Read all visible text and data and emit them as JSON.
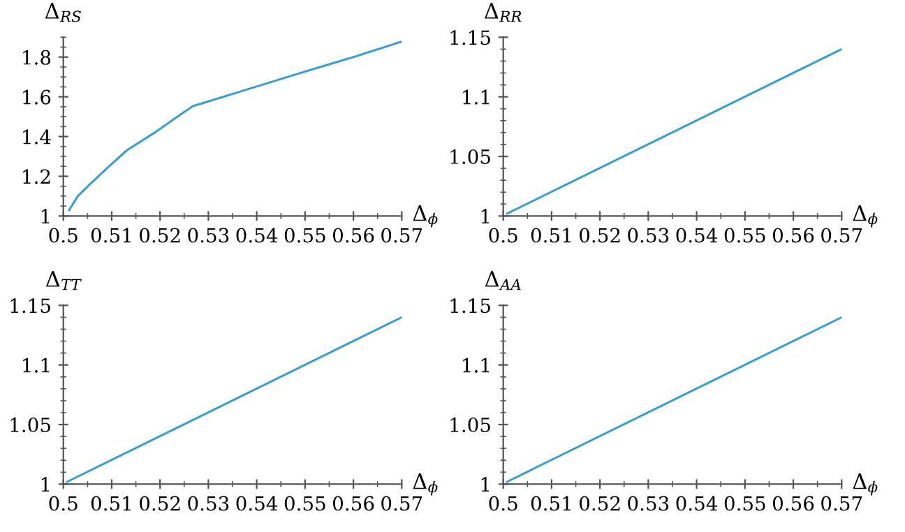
{
  "chart_data": [
    {
      "type": "line",
      "ylabel": "Δ$_{RS}$",
      "xlabel": "Δ$_{ϕ}$",
      "xlim": [
        0.5,
        0.57
      ],
      "xticks": [
        0.5,
        0.51,
        0.52,
        0.53,
        0.54,
        0.55,
        0.56,
        0.57
      ],
      "ylim": [
        1,
        1.9
      ],
      "yticks": [
        1,
        1.2,
        1.4,
        1.6,
        1.8
      ],
      "grid": false,
      "legend": false,
      "series": [
        {
          "color": "#3a9fcf",
          "x": [
            0.5012,
            0.503,
            0.5055,
            0.509,
            0.5131,
            0.5189,
            0.523,
            0.5268,
            0.53,
            0.54,
            0.55,
            0.56,
            0.57
          ],
          "values": [
            1.03,
            1.1,
            1.16,
            1.24,
            1.33,
            1.42,
            1.49,
            1.553,
            1.577,
            1.652,
            1.727,
            1.8,
            1.878
          ]
        }
      ]
    },
    {
      "type": "line",
      "ylabel": "Δ$_{RR}$",
      "xlabel": "Δ$_{ϕ}$",
      "xlim": [
        0.5,
        0.57
      ],
      "xticks": [
        0.5,
        0.51,
        0.52,
        0.53,
        0.54,
        0.55,
        0.56,
        0.57
      ],
      "ylim": [
        1,
        1.15
      ],
      "yticks": [
        1,
        1.05,
        1.1,
        1.15
      ],
      "grid": false,
      "legend": false,
      "series": [
        {
          "color": "#3a9fcf",
          "x": [
            0.5008,
            0.57
          ],
          "values": [
            1.002,
            1.14
          ]
        }
      ]
    },
    {
      "type": "line",
      "ylabel": "Δ$_{TT}$",
      "xlabel": "Δ$_{ϕ}$",
      "xlim": [
        0.5,
        0.57
      ],
      "xticks": [
        0.5,
        0.51,
        0.52,
        0.53,
        0.54,
        0.55,
        0.56,
        0.57
      ],
      "ylim": [
        1,
        1.15
      ],
      "yticks": [
        1,
        1.05,
        1.1,
        1.15
      ],
      "grid": false,
      "legend": false,
      "series": [
        {
          "color": "#3a9fcf",
          "x": [
            0.5008,
            0.57
          ],
          "values": [
            1.002,
            1.14
          ]
        }
      ]
    },
    {
      "type": "line",
      "ylabel": "Δ$_{AA}$",
      "xlabel": "Δ$_{ϕ}$",
      "xlim": [
        0.5,
        0.57
      ],
      "xticks": [
        0.5,
        0.51,
        0.52,
        0.53,
        0.54,
        0.55,
        0.56,
        0.57
      ],
      "ylim": [
        1,
        1.15
      ],
      "yticks": [
        1,
        1.05,
        1.1,
        1.15
      ],
      "grid": false,
      "legend": false,
      "series": [
        {
          "color": "#3a9fcf",
          "x": [
            0.5008,
            0.57
          ],
          "values": [
            1.002,
            1.14
          ]
        }
      ]
    }
  ]
}
